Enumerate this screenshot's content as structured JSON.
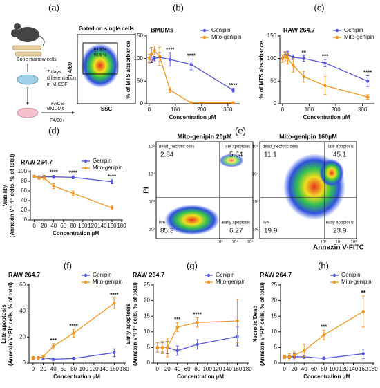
{
  "panel_labels": [
    "(a)",
    "(b)",
    "(c)",
    "(d)",
    "(e)",
    "(f)",
    "(g)",
    "(h)"
  ],
  "panel_a": {
    "schematic": [
      "Bone marrow cells",
      "7 days",
      "differentiation",
      "in M-CSF",
      "BMDMs",
      "FACS",
      "F4/80+"
    ],
    "gate_title": "Gated on single cells",
    "y_axis": "F4/80",
    "x_axis": "SSC",
    "gate_label": "F4/80+",
    "gate_value": "96.5 %"
  },
  "panel_e": {
    "y_axis": "PI",
    "x_axis": "Annexin V-FITC",
    "yticks": [
      "10⁵",
      "10⁴",
      "10³",
      "10²"
    ],
    "xticks": [
      "10³",
      "10⁴",
      "10⁵"
    ],
    "plots": [
      {
        "title": "Mito-genipin 20µM",
        "quadrants": [
          {
            "label": "dead_necrotic cells",
            "value": 2.84
          },
          {
            "label": "late apoptosis",
            "value": 5.64
          },
          {
            "label": "live",
            "value": 85.3
          },
          {
            "label": "early apoptosis",
            "value": 6.27
          }
        ]
      },
      {
        "title": "Mito-genipin 160µM",
        "quadrants": [
          {
            "label": "dead_necrotic cells",
            "value": 11.1
          },
          {
            "label": "late apoptosis",
            "value": 45.1
          },
          {
            "label": "live",
            "value": 19.9
          },
          {
            "label": "early apoptosis",
            "value": 23.9
          }
        ]
      }
    ]
  },
  "chart_data": [
    {
      "type": "line",
      "title": "BMDMs",
      "xlabel": "Concentration µM",
      "ylabel": [
        "% of MTS absorbance"
      ],
      "x": [
        0,
        10,
        20,
        40,
        80,
        160,
        320
      ],
      "xlim": [
        -10,
        340
      ],
      "xticks": [
        0,
        100,
        200,
        300
      ],
      "ylim": [
        0,
        150
      ],
      "yticks": [
        0,
        50,
        100,
        150
      ],
      "legend": "upper right",
      "series": [
        {
          "name": "Genipin",
          "color": "#5656d8",
          "values": [
            100,
            97,
            100,
            103,
            98,
            87,
            30
          ],
          "errors": [
            8,
            6,
            5,
            10,
            15,
            12,
            4
          ]
        },
        {
          "name": "Mito-genipin",
          "color": "#f0961e",
          "values": [
            100,
            110,
            118,
            105,
            30,
            2,
            2
          ],
          "errors": [
            10,
            15,
            10,
            20,
            5,
            2,
            2
          ]
        }
      ],
      "annotations": [
        {
          "text": "****",
          "x": 80
        },
        {
          "text": "****",
          "x": 160
        },
        {
          "text": "****",
          "x": 320
        }
      ]
    },
    {
      "type": "line",
      "title": "RAW 264.7",
      "xlabel": "Concentration µM",
      "ylabel": [
        "% of MTS absorbance"
      ],
      "x": [
        0,
        10,
        20,
        40,
        80,
        160,
        320
      ],
      "xlim": [
        -10,
        340
      ],
      "xticks": [
        0,
        100,
        200,
        300
      ],
      "ylim": [
        0,
        150
      ],
      "yticks": [
        0,
        50,
        100,
        150
      ],
      "legend": "upper right",
      "series": [
        {
          "name": "Genipin",
          "color": "#5656d8",
          "values": [
            100,
            108,
            108,
            103,
            100,
            90,
            50
          ],
          "errors": [
            8,
            6,
            8,
            5,
            6,
            8,
            12
          ]
        },
        {
          "name": "Mito-genipin",
          "color": "#f0961e",
          "values": [
            100,
            105,
            100,
            85,
            60,
            40,
            15
          ],
          "errors": [
            8,
            10,
            12,
            15,
            12,
            20,
            5
          ]
        }
      ],
      "annotations": [
        {
          "text": "**",
          "x": 80
        },
        {
          "text": "***",
          "x": 160
        },
        {
          "text": "****",
          "x": 320
        }
      ]
    },
    {
      "type": "line",
      "title": "RAW 264.7",
      "xlabel": "Concentration µM",
      "ylabel": [
        "Viability",
        "(Annexin V⁻PI⁻ cells, % of total)"
      ],
      "x": [
        0,
        10,
        20,
        40,
        80,
        160
      ],
      "xlim": [
        -8,
        180
      ],
      "xticks": [
        0,
        20,
        40,
        60,
        80,
        100,
        120,
        140,
        160,
        180
      ],
      "ylim": [
        0,
        100
      ],
      "yticks": [
        0,
        20,
        40,
        60,
        80,
        100
      ],
      "legend": "upper right",
      "series": [
        {
          "name": "Genipin",
          "color": "#5656d8",
          "values": [
            90,
            88,
            89,
            89,
            88,
            79
          ],
          "errors": [
            2,
            3,
            3,
            3,
            3,
            4
          ]
        },
        {
          "name": "Mito-genipin",
          "color": "#f0961e",
          "values": [
            90,
            87,
            87,
            70,
            55,
            25
          ],
          "errors": [
            2,
            3,
            4,
            5,
            5,
            4
          ]
        }
      ],
      "annotations": [
        {
          "text": "****",
          "x": 40
        },
        {
          "text": "****",
          "x": 80
        },
        {
          "text": "****",
          "x": 160
        }
      ]
    },
    {
      "type": "line",
      "title": "RAW 264.7",
      "xlabel": "Concentration µM",
      "ylabel": [
        "Late apoptosis",
        "(Annexin V⁺PI⁺ cells, % of total)"
      ],
      "x": [
        0,
        10,
        20,
        40,
        80,
        160
      ],
      "xlim": [
        -8,
        180
      ],
      "xticks": [
        0,
        20,
        40,
        60,
        80,
        100,
        120,
        140,
        160,
        180
      ],
      "ylim": [
        0,
        60
      ],
      "yticks": [
        0,
        20,
        40,
        60
      ],
      "legend": "upper right",
      "series": [
        {
          "name": "Genipin",
          "color": "#5656d8",
          "values": [
            4,
            4,
            4,
            3,
            3.5,
            8
          ],
          "errors": [
            1,
            1,
            1,
            1,
            1,
            3
          ]
        },
        {
          "name": "Mito-genipin",
          "color": "#f0961e",
          "values": [
            4,
            4,
            5,
            13,
            23,
            46
          ],
          "errors": [
            1,
            1,
            1,
            2,
            3,
            4
          ]
        }
      ],
      "annotations": [
        {
          "text": "***",
          "x": 40
        },
        {
          "text": "****",
          "x": 80
        },
        {
          "text": "****",
          "x": 160
        }
      ]
    },
    {
      "type": "line",
      "title": "RAW 264.7",
      "xlabel": "Concentration µM",
      "ylabel": [
        "Early apoptosis",
        "(Annexin V⁺PI⁻ cells, % of total)"
      ],
      "x": [
        0,
        10,
        20,
        40,
        80,
        160
      ],
      "xlim": [
        -8,
        180
      ],
      "xticks": [
        0,
        20,
        40,
        60,
        80,
        100,
        120,
        140,
        160,
        180
      ],
      "ylim": [
        0,
        25
      ],
      "yticks": [
        0,
        5,
        10,
        15,
        20,
        25
      ],
      "legend": "upper right",
      "series": [
        {
          "name": "Genipin",
          "color": "#5656d8",
          "values": [
            5,
            5,
            5,
            4,
            6,
            8.5
          ],
          "errors": [
            1.5,
            1.5,
            2,
            1.5,
            1.5,
            3
          ]
        },
        {
          "name": "Mito-genipin",
          "color": "#f0961e",
          "values": [
            5,
            5,
            5,
            11.5,
            13,
            13.5
          ],
          "errors": [
            1.5,
            2,
            3,
            1.5,
            1.5,
            7
          ]
        }
      ],
      "annotations": [
        {
          "text": "***",
          "x": 40
        },
        {
          "text": "****",
          "x": 80
        }
      ]
    },
    {
      "type": "line",
      "title": "RAW 264.7",
      "xlabel": "Concentration µM",
      "ylabel": [
        "Necrotic/Dead",
        "(Annexin V⁻PI⁺ cells, % of total)"
      ],
      "x": [
        0,
        10,
        20,
        40,
        80,
        160
      ],
      "xlim": [
        -8,
        180
      ],
      "xticks": [
        0,
        20,
        40,
        60,
        80,
        100,
        120,
        140,
        160,
        180
      ],
      "ylim": [
        0,
        25
      ],
      "yticks": [
        0,
        5,
        10,
        15,
        20,
        25
      ],
      "legend": "upper right",
      "series": [
        {
          "name": "Genipin",
          "color": "#5656d8",
          "values": [
            2,
            2,
            2,
            2,
            1.5,
            3
          ],
          "errors": [
            0.5,
            0.5,
            1,
            0.5,
            0.5,
            1.5
          ]
        },
        {
          "name": "Mito-genipin",
          "color": "#f0961e",
          "values": [
            2,
            2,
            2.5,
            4,
            9,
            16.5
          ],
          "errors": [
            0.5,
            1,
            1,
            2,
            1.5,
            5
          ]
        }
      ],
      "annotations": [
        {
          "text": "***",
          "x": 80
        },
        {
          "text": "**",
          "x": 160
        }
      ]
    }
  ]
}
